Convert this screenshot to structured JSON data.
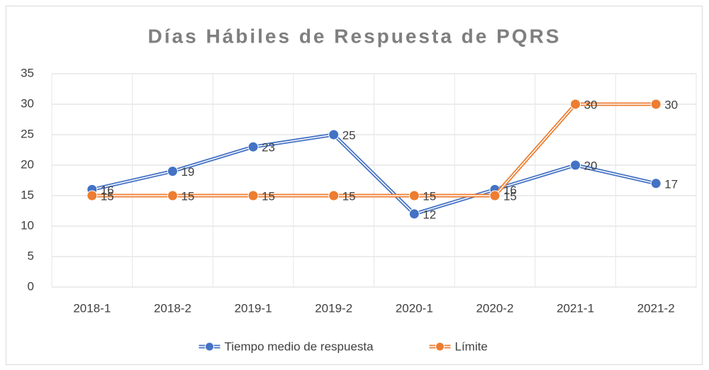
{
  "chart_data": {
    "type": "line",
    "title": "Días Hábiles de Respuesta de PQRS",
    "categories": [
      "2018-1",
      "2018-2",
      "2019-1",
      "2019-2",
      "2020-1",
      "2020-2",
      "2021-1",
      "2021-2"
    ],
    "series": [
      {
        "name": "Tiempo medio de respuesta",
        "color": "#4472c4",
        "values": [
          16,
          19,
          23,
          25,
          12,
          16,
          20,
          17
        ]
      },
      {
        "name": "Límite",
        "color": "#ed7d31",
        "values": [
          15,
          15,
          15,
          15,
          15,
          15,
          30,
          30
        ]
      }
    ],
    "ylim": [
      0,
      35
    ],
    "yticks": [
      0,
      5,
      10,
      15,
      20,
      25,
      30,
      35
    ],
    "grid": true,
    "legend": "bottom"
  }
}
